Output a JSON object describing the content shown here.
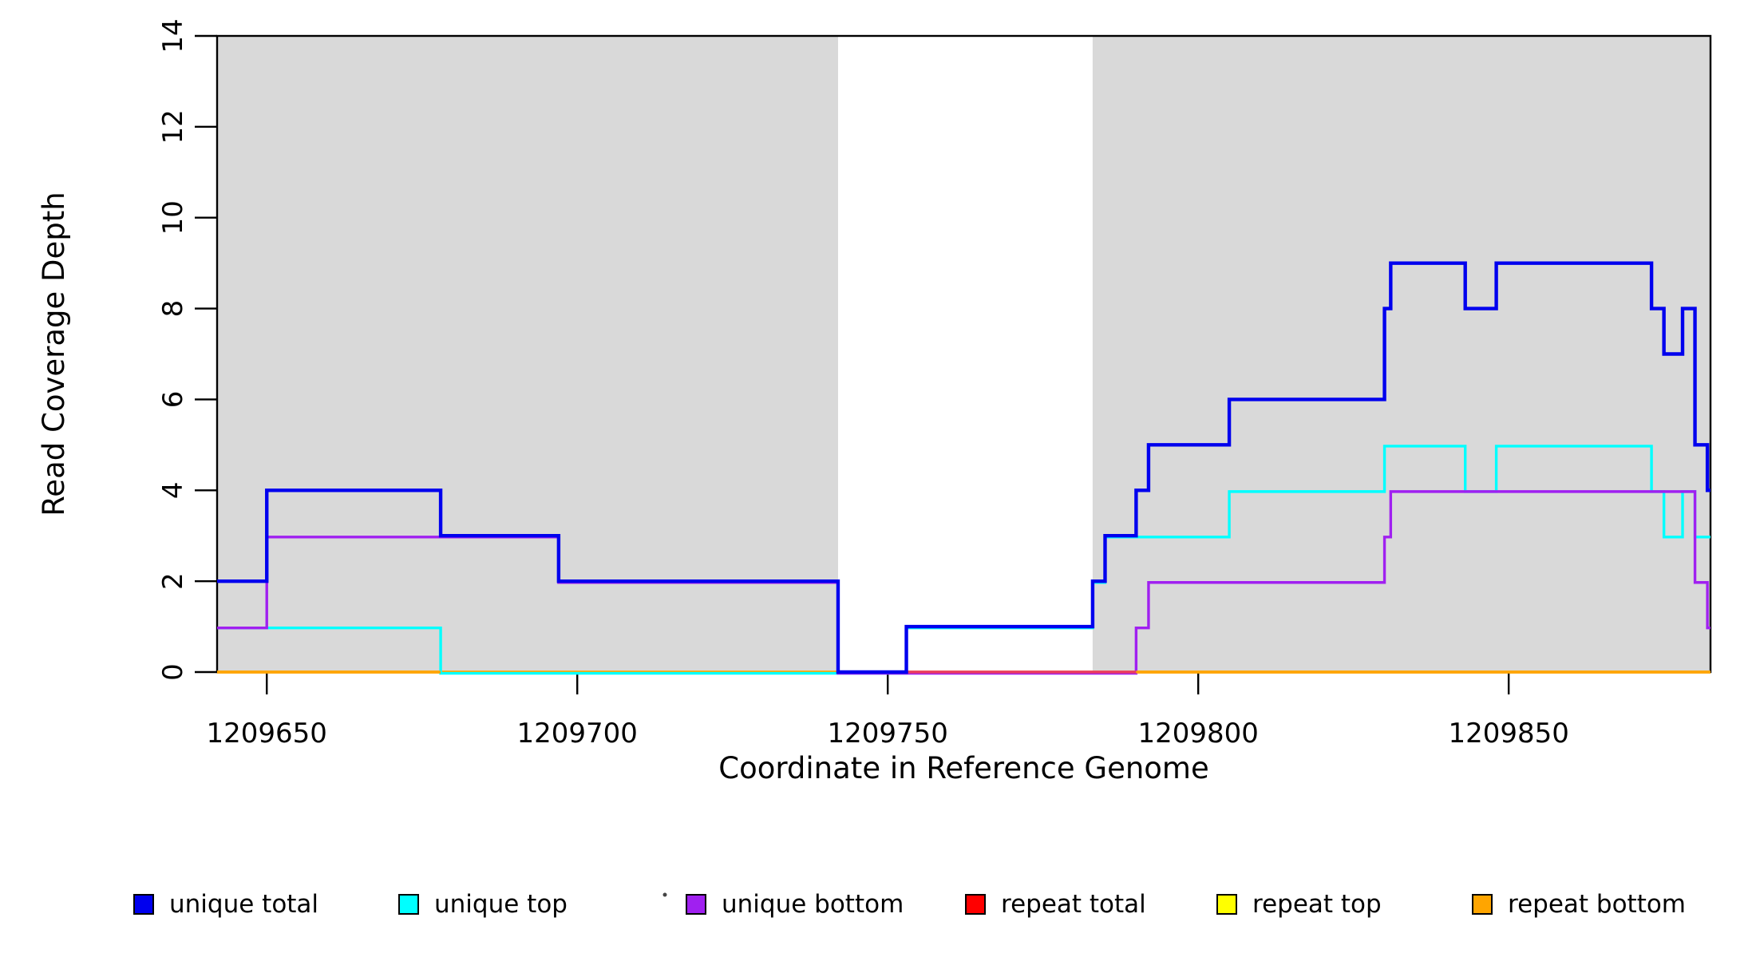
{
  "chart_data": {
    "type": "step-line",
    "title": "",
    "xlabel": "Coordinate in Reference Genome",
    "ylabel": "Read Coverage Depth",
    "xlim": [
      1209642,
      1209882.5
    ],
    "ylim": [
      0,
      14
    ],
    "x_ticks": [
      1209650,
      1209700,
      1209750,
      1209800,
      1209850
    ],
    "y_ticks": [
      0,
      2,
      4,
      6,
      8,
      10,
      12,
      14
    ],
    "grid": false,
    "legend_position": "bottom",
    "background_color": "#ffffff",
    "shaded_region_color": "#D9D9D9",
    "shaded_regions": [
      {
        "from": 1209642,
        "to": 1209742
      },
      {
        "from": 1209783,
        "to": 1209882.5
      }
    ],
    "series": [
      {
        "name": "unique total",
        "color": "#0000EE",
        "steps": [
          [
            1209642,
            2
          ],
          [
            1209650,
            4
          ],
          [
            1209678,
            3
          ],
          [
            1209697,
            2
          ],
          [
            1209742,
            0
          ],
          [
            1209753,
            1
          ],
          [
            1209783,
            2
          ],
          [
            1209785,
            3
          ],
          [
            1209790,
            4
          ],
          [
            1209792,
            5
          ],
          [
            1209805,
            6
          ],
          [
            1209830,
            8
          ],
          [
            1209831,
            9
          ],
          [
            1209843,
            8
          ],
          [
            1209848,
            9
          ],
          [
            1209873,
            8
          ],
          [
            1209875,
            7
          ],
          [
            1209878,
            8
          ],
          [
            1209880,
            5
          ],
          [
            1209882,
            4
          ]
        ]
      },
      {
        "name": "unique top",
        "color": "#00FFFF",
        "steps": [
          [
            1209642,
            1
          ],
          [
            1209678,
            0
          ],
          [
            1209753,
            1
          ],
          [
            1209783,
            2
          ],
          [
            1209785,
            3
          ],
          [
            1209805,
            4
          ],
          [
            1209830,
            5
          ],
          [
            1209843,
            4
          ],
          [
            1209848,
            5
          ],
          [
            1209873,
            4
          ],
          [
            1209875,
            3
          ],
          [
            1209878,
            4
          ],
          [
            1209880,
            3
          ]
        ]
      },
      {
        "name": "unique bottom",
        "color": "#A020F0",
        "steps": [
          [
            1209642,
            1
          ],
          [
            1209650,
            3
          ],
          [
            1209697,
            2
          ],
          [
            1209742,
            0
          ],
          [
            1209790,
            1
          ],
          [
            1209792,
            2
          ],
          [
            1209830,
            3
          ],
          [
            1209831,
            4
          ],
          [
            1209880,
            2
          ],
          [
            1209882,
            1
          ]
        ]
      },
      {
        "name": "repeat total",
        "color": "#FF0000",
        "steps": [
          [
            1209642,
            0
          ]
        ]
      },
      {
        "name": "repeat top",
        "color": "#FFFF00",
        "steps": [
          [
            1209642,
            0
          ]
        ]
      },
      {
        "name": "repeat bottom",
        "color": "#FFA500",
        "steps": [
          [
            1209642,
            0
          ]
        ]
      }
    ],
    "baseline_z_overlays": [
      {
        "color": "#E93A62",
        "from": 1209753,
        "to": 1209790
      },
      {
        "color": "#FFA500",
        "from": 1209642,
        "to": 1209678
      },
      {
        "color": "#FFA500",
        "from": 1209790,
        "to": 1209882.5
      }
    ],
    "legend": [
      {
        "label": "unique total",
        "color": "#0000EE"
      },
      {
        "label": "unique top",
        "color": "#00FFFF"
      },
      {
        "label": "unique bottom",
        "color": "#A020F0"
      },
      {
        "label": "repeat total",
        "color": "#FF0000"
      },
      {
        "label": "repeat top",
        "color": "#FFFF00"
      },
      {
        "label": "repeat bottom",
        "color": "#FFA500"
      }
    ],
    "stray_dot": {
      "x": 833,
      "y": 1121
    }
  }
}
